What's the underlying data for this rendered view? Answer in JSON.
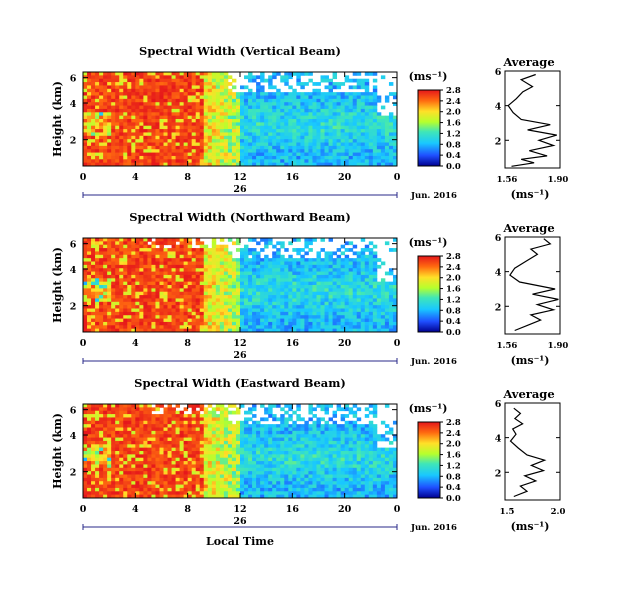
{
  "chart_data": [
    {
      "type": "heatmap",
      "title": "Spectral Width (Vertical Beam)",
      "ylabel": "Height (km)",
      "yticks": [
        "6",
        "4",
        "2"
      ],
      "xticks": [
        "0",
        "4",
        "8",
        "12",
        "16",
        "20",
        "0"
      ],
      "date_label": "26",
      "month_label": "Jun. 2016",
      "colorbar_unit": "(ms⁻¹)",
      "colorbar_ticks": [
        "2.8",
        "2.4",
        "2.0",
        "1.6",
        "1.2",
        "0.8",
        "0.4",
        "0.0"
      ],
      "colorbar_range": [
        0.0,
        2.8
      ],
      "average": {
        "title": "Average",
        "xlabel": "(ms⁻¹)",
        "xticks": [
          "1.56",
          "1.90"
        ],
        "xlim": [
          1.56,
          1.9
        ],
        "yticks": [
          "6",
          "4",
          "2"
        ],
        "ylim": [
          0.4,
          6.0
        ],
        "profile": [
          [
            1.6,
            0.5
          ],
          [
            1.74,
            0.7
          ],
          [
            1.66,
            0.9
          ],
          [
            1.82,
            1.1
          ],
          [
            1.71,
            1.4
          ],
          [
            1.86,
            1.7
          ],
          [
            1.77,
            2.0
          ],
          [
            1.88,
            2.3
          ],
          [
            1.7,
            2.6
          ],
          [
            1.84,
            2.9
          ],
          [
            1.66,
            3.2
          ],
          [
            1.61,
            3.6
          ],
          [
            1.58,
            4.0
          ],
          [
            1.63,
            4.4
          ],
          [
            1.67,
            4.8
          ],
          [
            1.73,
            5.1
          ],
          [
            1.66,
            5.5
          ],
          [
            1.75,
            5.8
          ]
        ]
      }
    },
    {
      "type": "heatmap",
      "title": "Spectral Width (Northward Beam)",
      "ylabel": "Height (km)",
      "yticks": [
        "6",
        "4",
        "2"
      ],
      "xticks": [
        "0",
        "4",
        "8",
        "12",
        "16",
        "20",
        "0"
      ],
      "date_label": "26",
      "month_label": "Jun. 2016",
      "colorbar_unit": "(ms⁻¹)",
      "colorbar_ticks": [
        "2.8",
        "2.4",
        "2.0",
        "1.6",
        "1.2",
        "0.8",
        "0.4",
        "0.0"
      ],
      "colorbar_range": [
        0.0,
        2.8
      ],
      "average": {
        "title": "Average",
        "xlabel": "(ms⁻¹)",
        "xticks": [
          "1.56",
          "1.90"
        ],
        "xlim": [
          1.56,
          1.9
        ],
        "yticks": [
          "6",
          "4",
          "2"
        ],
        "ylim": [
          0.4,
          6.0
        ],
        "profile": [
          [
            1.62,
            0.6
          ],
          [
            1.7,
            0.9
          ],
          [
            1.78,
            1.2
          ],
          [
            1.72,
            1.5
          ],
          [
            1.86,
            1.8
          ],
          [
            1.76,
            2.1
          ],
          [
            1.89,
            2.4
          ],
          [
            1.73,
            2.7
          ],
          [
            1.87,
            3.0
          ],
          [
            1.65,
            3.4
          ],
          [
            1.59,
            3.8
          ],
          [
            1.62,
            4.2
          ],
          [
            1.69,
            4.6
          ],
          [
            1.76,
            5.0
          ],
          [
            1.72,
            5.3
          ],
          [
            1.84,
            5.6
          ],
          [
            1.8,
            5.9
          ]
        ]
      }
    },
    {
      "type": "heatmap",
      "title": "Spectral Width (Eastward Beam)",
      "ylabel": "Height (km)",
      "yticks": [
        "6",
        "4",
        "2"
      ],
      "xticks": [
        "0",
        "4",
        "8",
        "12",
        "16",
        "20",
        "0"
      ],
      "date_label": "26",
      "month_label": "Jun. 2016",
      "xlabel": "Local Time",
      "colorbar_unit": "(ms⁻¹)",
      "colorbar_ticks": [
        "2.8",
        "2.4",
        "2.0",
        "1.6",
        "1.2",
        "0.8",
        "0.4",
        "0.0"
      ],
      "colorbar_range": [
        0.0,
        2.8
      ],
      "average": {
        "title": "Average",
        "xlabel": "(ms⁻¹)",
        "xticks": [
          "1.5",
          "2.0"
        ],
        "xlim": [
          1.5,
          2.0
        ],
        "yticks": [
          "6",
          "4",
          "2"
        ],
        "ylim": [
          0.4,
          6.0
        ],
        "profile": [
          [
            1.58,
            0.6
          ],
          [
            1.7,
            0.9
          ],
          [
            1.64,
            1.2
          ],
          [
            1.78,
            1.5
          ],
          [
            1.68,
            1.8
          ],
          [
            1.85,
            2.1
          ],
          [
            1.74,
            2.4
          ],
          [
            1.86,
            2.7
          ],
          [
            1.7,
            3.0
          ],
          [
            1.62,
            3.4
          ],
          [
            1.55,
            3.8
          ],
          [
            1.6,
            4.2
          ],
          [
            1.57,
            4.5
          ],
          [
            1.66,
            4.8
          ],
          [
            1.59,
            5.1
          ],
          [
            1.64,
            5.4
          ],
          [
            1.58,
            5.7
          ]
        ]
      }
    }
  ]
}
